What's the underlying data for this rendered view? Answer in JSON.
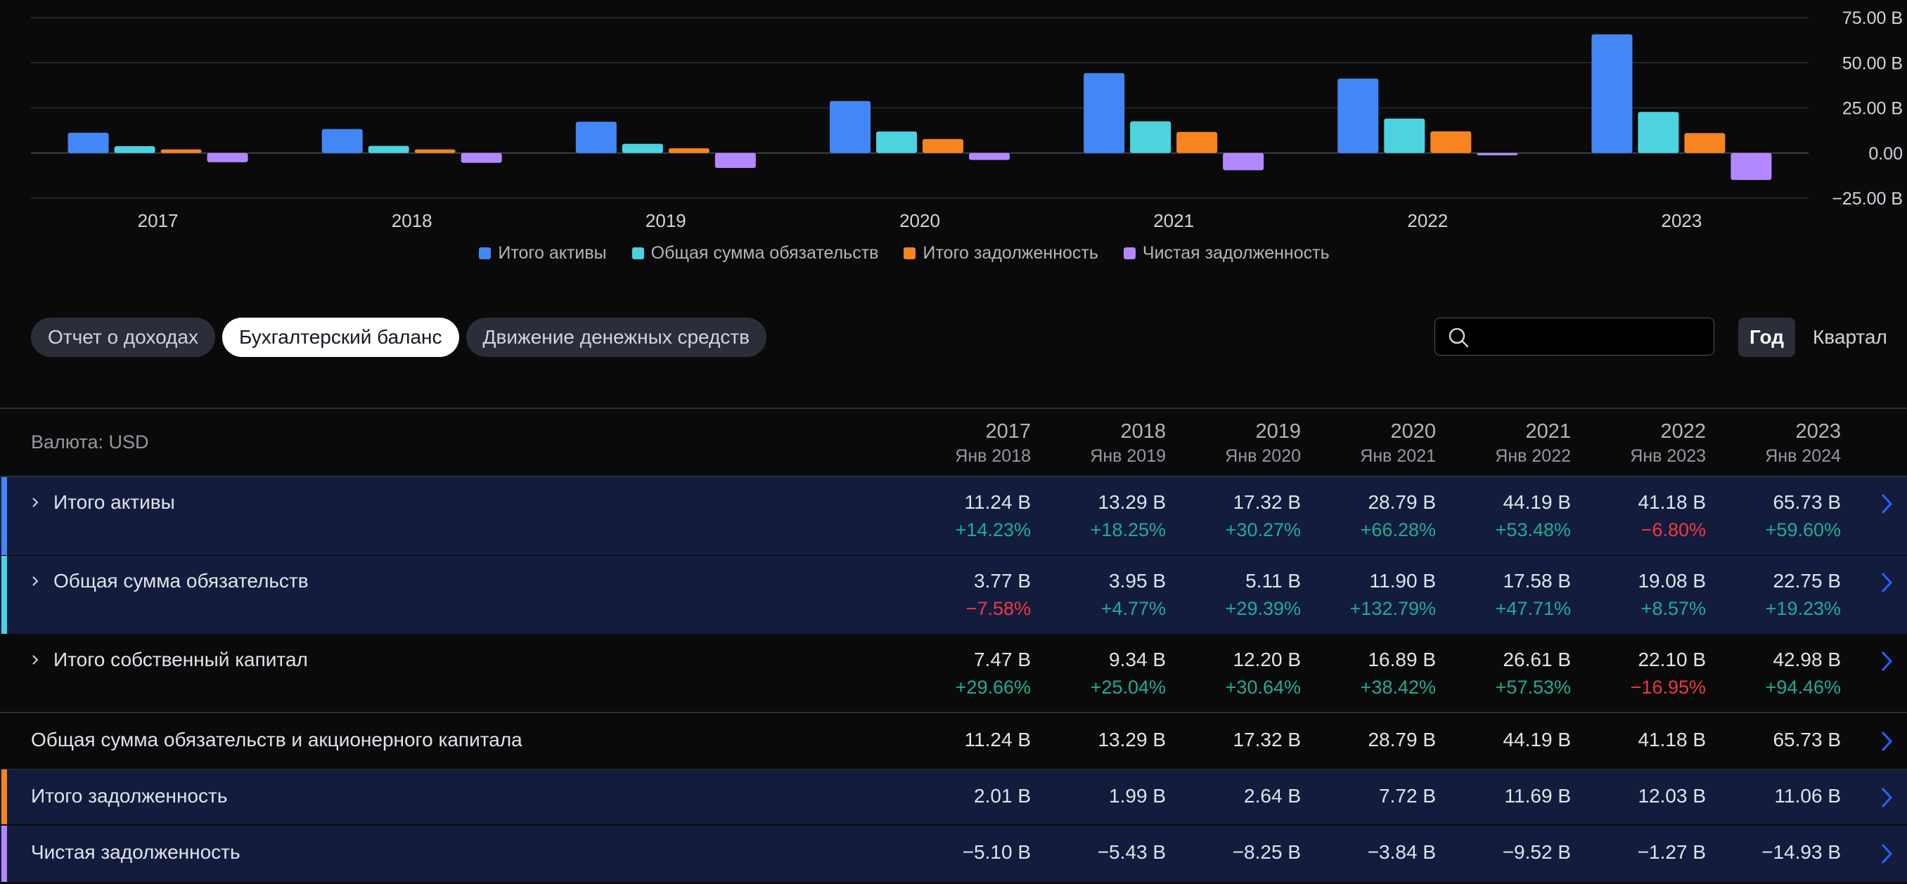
{
  "chart_data": {
    "type": "bar",
    "categories": [
      "2017",
      "2018",
      "2019",
      "2020",
      "2021",
      "2022",
      "2023"
    ],
    "series": [
      {
        "name": "Итого активы",
        "color": "#4287f5",
        "values": [
          11.24,
          13.29,
          17.32,
          28.79,
          44.19,
          41.18,
          65.73
        ]
      },
      {
        "name": "Общая сумма обязательств",
        "color": "#4dd2e0",
        "values": [
          3.77,
          3.95,
          5.11,
          11.9,
          17.58,
          19.08,
          22.75
        ]
      },
      {
        "name": "Итого задолженность",
        "color": "#f7841e",
        "values": [
          2.01,
          1.99,
          2.64,
          7.72,
          11.69,
          12.03,
          11.06
        ]
      },
      {
        "name": "Чистая задолженность",
        "color": "#b388ff",
        "values": [
          -5.1,
          -5.43,
          -8.25,
          -3.84,
          -9.52,
          -1.27,
          -14.93
        ]
      }
    ],
    "y_ticks": [
      "75.00 B",
      "50.00 B",
      "25.00 B",
      "0.00",
      "−25.00 B"
    ],
    "y_tick_values": [
      75,
      50,
      25,
      0,
      -25
    ],
    "ylim": [
      -25,
      75
    ],
    "grid": true,
    "legend_position": "bottom"
  },
  "tabs": [
    {
      "label": "Отчет о доходах",
      "active": false
    },
    {
      "label": "Бухгалтерский баланс",
      "active": true
    },
    {
      "label": "Движение денежных средств",
      "active": false
    }
  ],
  "period": {
    "year": "Год",
    "quarter": "Квартал",
    "selected": "Год"
  },
  "search": {
    "placeholder": "",
    "icon": "search-icon"
  },
  "table": {
    "currency_label": "Валюта: USD",
    "columns": [
      {
        "year": "2017",
        "sub": "Янв 2018"
      },
      {
        "year": "2018",
        "sub": "Янв 2019"
      },
      {
        "year": "2019",
        "sub": "Янв 2020"
      },
      {
        "year": "2020",
        "sub": "Янв 2021"
      },
      {
        "year": "2021",
        "sub": "Янв 2022"
      },
      {
        "year": "2022",
        "sub": "Янв 2023"
      },
      {
        "year": "2023",
        "sub": "Янв 2024"
      }
    ],
    "rows": [
      {
        "label": "Итого активы",
        "color": "#4287f5",
        "values": [
          "11.24 B",
          "13.29 B",
          "17.32 B",
          "28.79 B",
          "44.19 B",
          "41.18 B",
          "65.73 B"
        ],
        "changes": [
          "+14.23%",
          "+18.25%",
          "+30.27%",
          "+66.28%",
          "+53.48%",
          "−6.80%",
          "+59.60%"
        ]
      },
      {
        "label": "Общая сумма обязательств",
        "color": "#4dd2e0",
        "values": [
          "3.77 B",
          "3.95 B",
          "5.11 B",
          "11.90 B",
          "17.58 B",
          "19.08 B",
          "22.75 B"
        ],
        "changes": [
          "−7.58%",
          "+4.77%",
          "+29.39%",
          "+132.79%",
          "+47.71%",
          "+8.57%",
          "+19.23%"
        ]
      },
      {
        "label": "Итого собственный капитал",
        "values": [
          "7.47 B",
          "9.34 B",
          "12.20 B",
          "16.89 B",
          "26.61 B",
          "22.10 B",
          "42.98 B"
        ],
        "changes": [
          "+29.66%",
          "+25.04%",
          "+30.64%",
          "+38.42%",
          "+57.53%",
          "−16.95%",
          "+94.46%"
        ]
      },
      {
        "label": "Общая сумма обязательств и акционерного капитала",
        "values": [
          "11.24 B",
          "13.29 B",
          "17.32 B",
          "28.79 B",
          "44.19 B",
          "41.18 B",
          "65.73 B"
        ]
      },
      {
        "label": "Итого задолженность",
        "color": "#f7841e",
        "values": [
          "2.01 B",
          "1.99 B",
          "2.64 B",
          "7.72 B",
          "11.69 B",
          "12.03 B",
          "11.06 B"
        ]
      },
      {
        "label": "Чистая задолженность",
        "color": "#b388ff",
        "values": [
          "−5.10 B",
          "−5.43 B",
          "−8.25 B",
          "−3.84 B",
          "−9.52 B",
          "−1.27 B",
          "−14.93 B"
        ]
      }
    ]
  }
}
